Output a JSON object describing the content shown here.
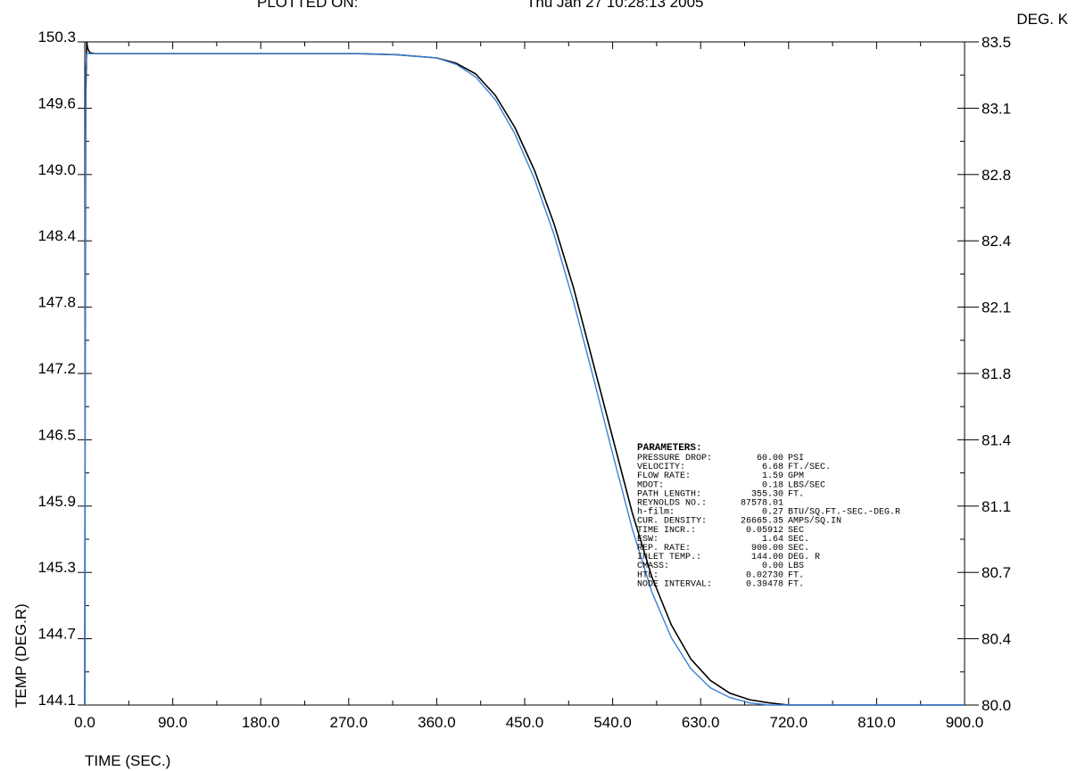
{
  "header": {
    "plotted_on_label": "PLOTTED ON:",
    "plotted_on_date": "Thu Jan 27 10:28:13 2005"
  },
  "chart_data": {
    "type": "line",
    "xlabel": "TIME (SEC.)",
    "ylabel": "TEMP (DEG.R)",
    "y2label": "DEG. K",
    "xlim": [
      0,
      900
    ],
    "ylim": [
      144.1,
      150.3
    ],
    "x_ticks": [
      "0.0",
      "90.0",
      "180.0",
      "270.0",
      "360.0",
      "450.0",
      "540.0",
      "630.0",
      "720.0",
      "810.0",
      "900.0"
    ],
    "y_ticks": [
      "144.1",
      "144.7",
      "145.3",
      "145.9",
      "146.5",
      "147.2",
      "147.8",
      "148.4",
      "149.0",
      "149.6",
      "150.3"
    ],
    "y2_ticks": [
      "80.0",
      "80.4",
      "80.7",
      "81.1",
      "81.4",
      "81.8",
      "82.1",
      "82.4",
      "82.8",
      "83.1",
      "83.5"
    ],
    "grid": false,
    "series": [
      {
        "color": "#000000",
        "x": [
          0,
          0.5,
          1,
          2,
          3,
          5,
          10,
          50,
          100,
          200,
          280,
          320,
          360,
          380,
          400,
          420,
          440,
          460,
          480,
          500,
          520,
          540,
          560,
          580,
          600,
          620,
          640,
          660,
          680,
          700,
          720,
          740,
          760,
          900
        ],
        "y": [
          144.1,
          148.2,
          149.8,
          150.3,
          150.24,
          150.2,
          150.19,
          150.19,
          150.19,
          150.19,
          150.19,
          150.18,
          150.15,
          150.1,
          150.0,
          149.8,
          149.5,
          149.1,
          148.6,
          148.0,
          147.3,
          146.6,
          145.9,
          145.3,
          144.85,
          144.53,
          144.33,
          144.21,
          144.15,
          144.12,
          144.1,
          144.1,
          144.1,
          144.1
        ]
      },
      {
        "color": "#3a7fd5",
        "x": [
          0,
          0.5,
          1,
          2,
          3,
          5,
          10,
          50,
          100,
          200,
          280,
          320,
          360,
          380,
          400,
          420,
          440,
          460,
          480,
          500,
          520,
          540,
          560,
          580,
          600,
          620,
          640,
          660,
          680,
          700,
          720,
          740,
          760,
          900
        ],
        "y": [
          144.1,
          148.7,
          150.05,
          150.19,
          150.19,
          150.19,
          150.19,
          150.19,
          150.19,
          150.19,
          150.19,
          150.18,
          150.15,
          150.09,
          149.97,
          149.76,
          149.44,
          149.02,
          148.5,
          147.87,
          147.17,
          146.45,
          145.75,
          145.16,
          144.73,
          144.44,
          144.26,
          144.17,
          144.12,
          144.1,
          144.1,
          144.1,
          144.1,
          144.1
        ]
      }
    ],
    "annotation": {
      "title": "PARAMETERS:",
      "rows": [
        [
          "PRESSURE DROP:",
          "60.00",
          "PSI"
        ],
        [
          "VELOCITY:",
          "6.68",
          "FT./SEC."
        ],
        [
          "FLOW RATE:",
          "1.59",
          "GPM"
        ],
        [
          "MDOT:",
          "0.18",
          "LBS/SEC"
        ],
        [
          "PATH LENGTH:",
          "355.30",
          "FT."
        ],
        [
          "REYNOLDS NO.:",
          "87578.01",
          ""
        ],
        [
          "h-film:",
          "0.27",
          "BTU/SQ.FT.-SEC.-DEG.R"
        ],
        [
          "CUR. DENSITY:",
          "26665.35",
          "AMPS/SQ.IN"
        ],
        [
          "TIME INCR.:",
          "0.05912",
          "SEC"
        ],
        [
          "ESW:",
          "1.64",
          "SEC."
        ],
        [
          "REP. RATE:",
          "900.00",
          "SEC."
        ],
        [
          "INLET TEMP.:",
          "144.00",
          "DEG. R"
        ],
        [
          "CMASS:",
          "0.00",
          "LBS"
        ],
        [
          "HTL:",
          "0.02730",
          "FT."
        ],
        [
          "NODE INTERVAL:",
          "0.39478",
          "FT."
        ]
      ]
    }
  }
}
